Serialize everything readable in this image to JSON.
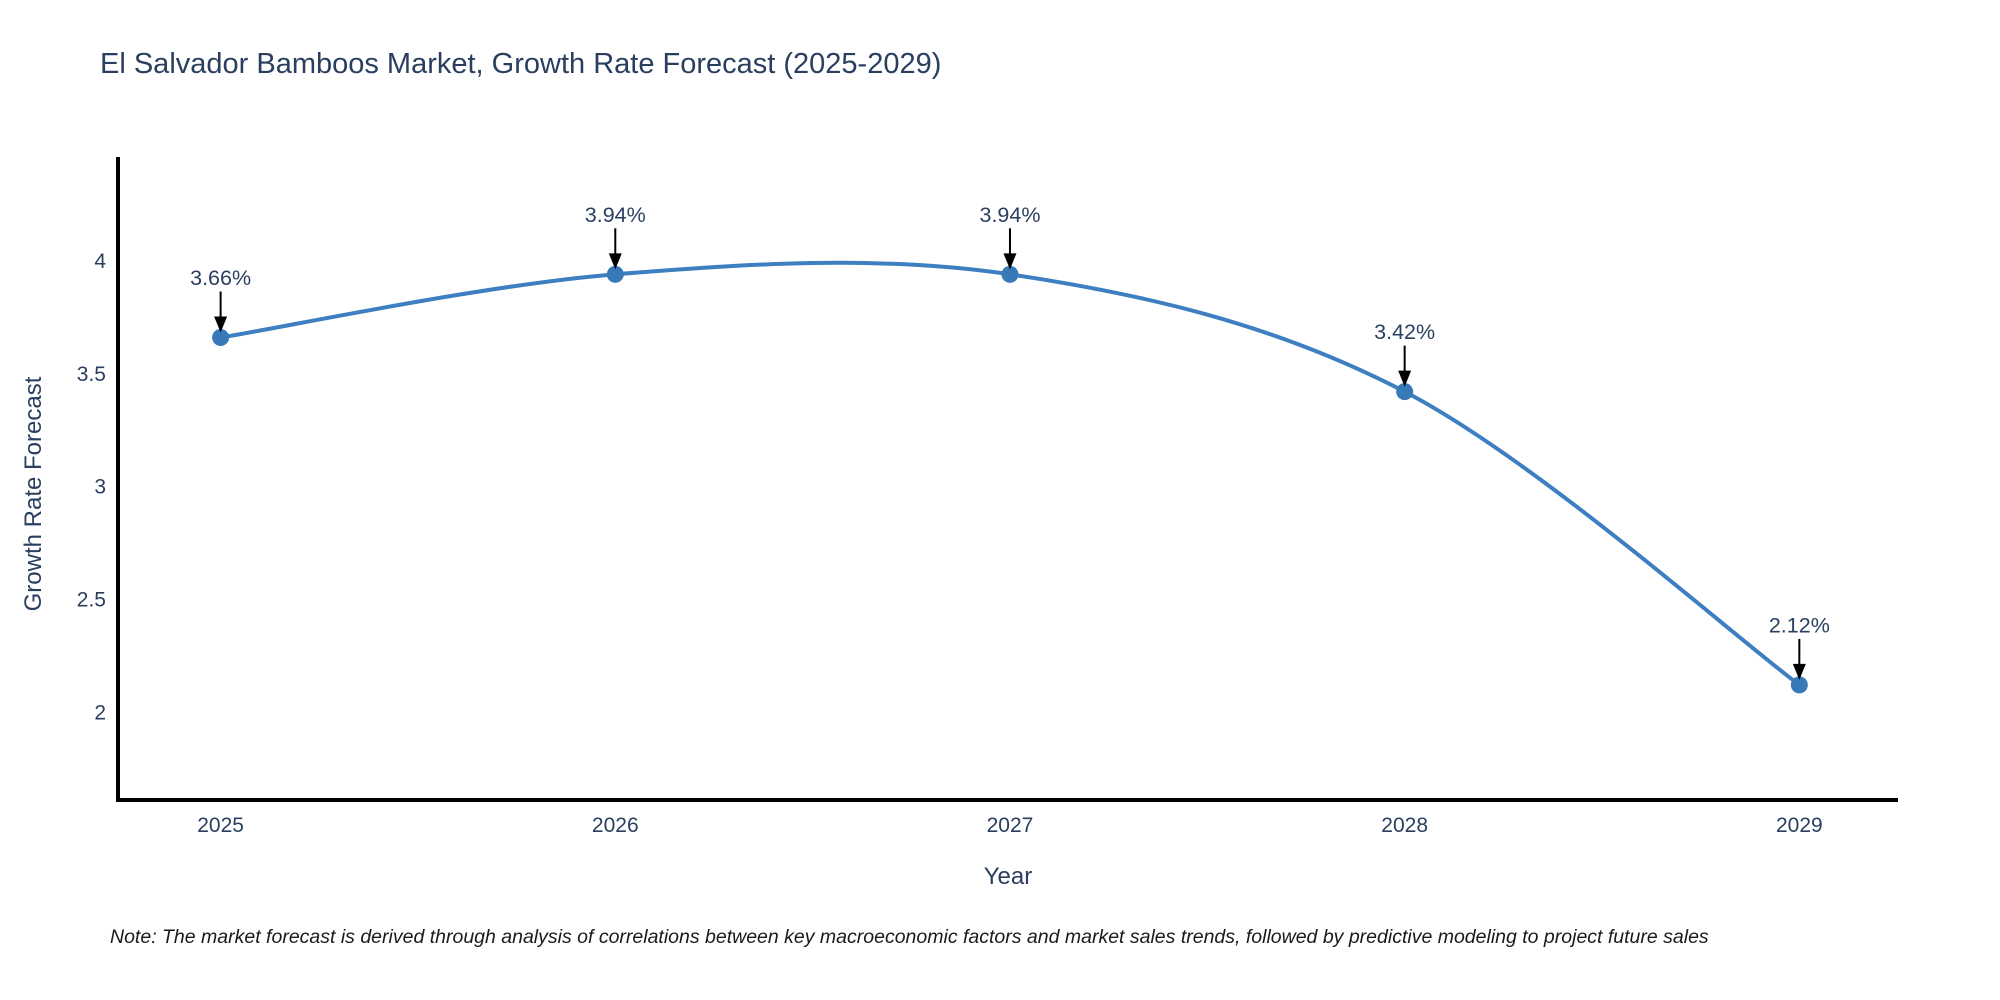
{
  "page": {
    "note": "Note: The market forecast is derived through analysis of correlations between key macroeconomic factors and market sales trends, followed by predictive modeling to project future sales"
  },
  "chart_data": {
    "type": "line",
    "title": "El Salvador Bamboos Market, Growth Rate Forecast (2025-2029)",
    "xlabel": "Year",
    "ylabel": "Growth Rate Forecast",
    "x": [
      2025,
      2026,
      2027,
      2028,
      2029
    ],
    "categories": [
      "2025",
      "2026",
      "2027",
      "2028",
      "2029"
    ],
    "series": [
      {
        "name": "Growth Rate Forecast",
        "values": [
          3.66,
          3.94,
          3.94,
          3.42,
          2.12
        ]
      }
    ],
    "point_labels": [
      "3.66%",
      "3.94%",
      "3.94%",
      "3.42%",
      "2.12%"
    ],
    "line_shape": "spline",
    "markers": true,
    "yticks": [
      2,
      2.5,
      3,
      3.5,
      4
    ],
    "ytick_labels": [
      "2",
      "2.5",
      "3",
      "3.5",
      "4"
    ],
    "ylim": [
      1.61,
      4.46
    ],
    "xlim": [
      2024.74,
      2029.25
    ],
    "grid": false,
    "legend": "none",
    "annotation_style": "black-down-arrows",
    "colors": {
      "line": "#3d7fc1",
      "marker": "#3879b8",
      "axis": "#000000",
      "text": "#2a3f5f",
      "annotation_arrow": "#000000",
      "note_text": "#1a1a1a",
      "background": "#ffffff"
    }
  }
}
